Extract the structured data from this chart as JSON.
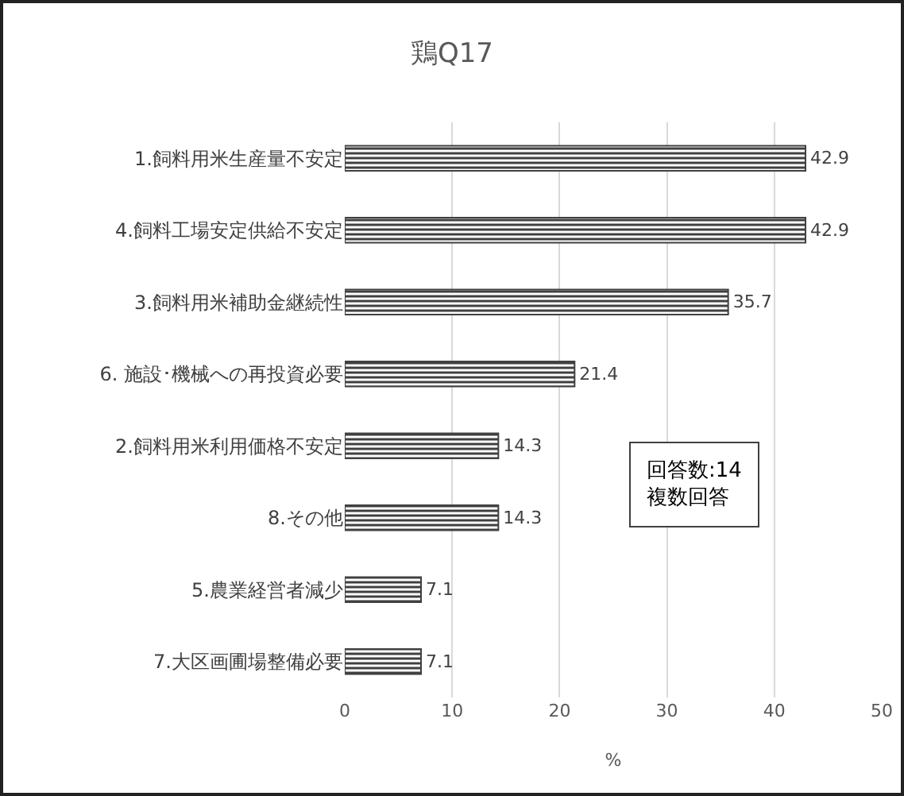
{
  "chart_data": {
    "type": "bar",
    "orientation": "horizontal",
    "title": "鶏Q17",
    "xlabel": "%",
    "categories": [
      "1.飼料用米生産量不安定",
      "4.飼料工場安定供給不安定",
      "3.飼料用米補助金継続性",
      "6. 施設･機械への再投資必要",
      "2.飼料用米利用価格不安定",
      "8.その他",
      "5.農業経営者減少",
      "7.大区画圃場整備必要"
    ],
    "values": [
      42.9,
      42.9,
      35.7,
      21.4,
      14.3,
      14.3,
      7.1,
      7.1
    ],
    "color": "#404040",
    "xlim": [
      0,
      50
    ],
    "xticks": [
      0,
      10,
      20,
      30,
      40,
      50
    ],
    "grid": "x",
    "data_labels": true,
    "annotations": [
      "回答数:14\n複数回答"
    ]
  }
}
